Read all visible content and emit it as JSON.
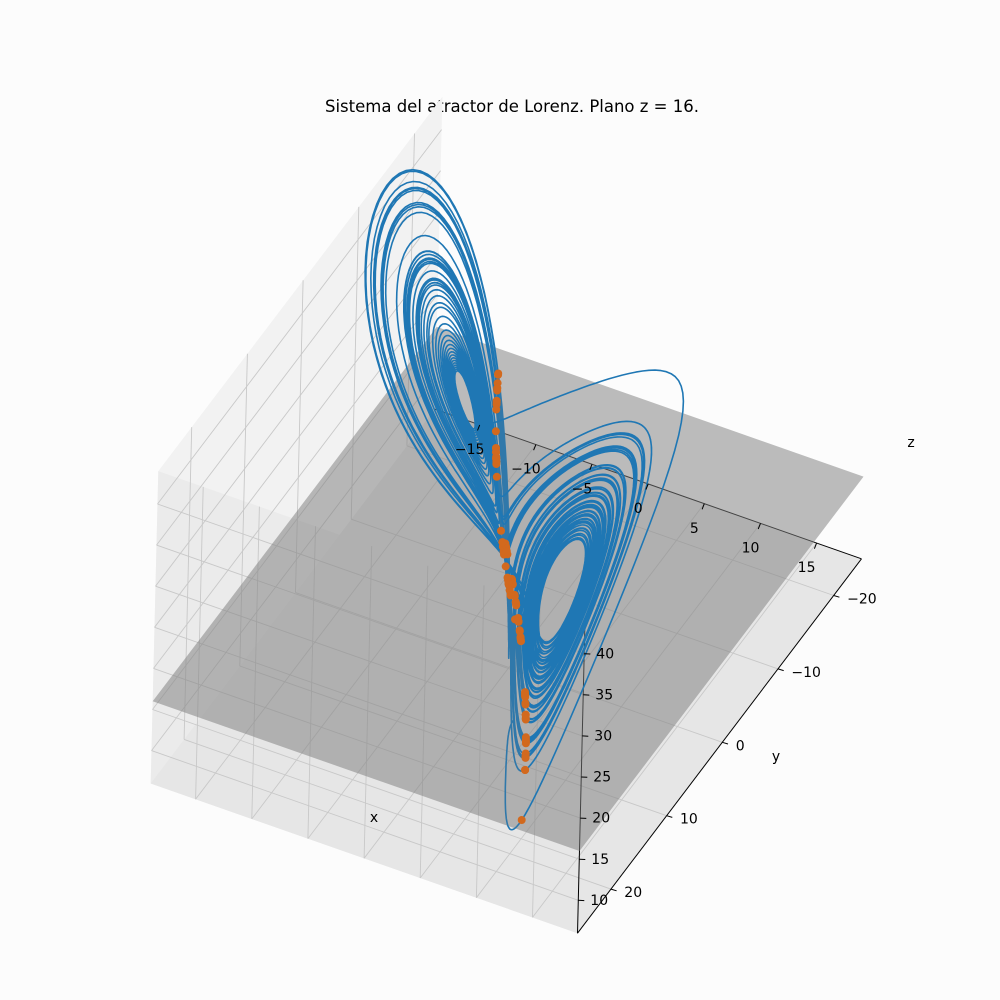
{
  "chart_data": {
    "type": "line",
    "projection": "3d",
    "title": "Sistema del atractor de Lorenz. Plano z = 16.",
    "xlabel": "x",
    "ylabel": "y",
    "zlabel": "z",
    "xlim": [
      -19,
      19
    ],
    "ylim": [
      -25,
      26
    ],
    "zlim": [
      6,
      44
    ],
    "x_ticks": [
      -15,
      -10,
      -5,
      0,
      5,
      10,
      15
    ],
    "y_ticks": [
      -20,
      -10,
      0,
      10,
      20
    ],
    "z_ticks": [
      10,
      15,
      20,
      25,
      30,
      35,
      40
    ],
    "grid": true,
    "plane": {
      "z": 16,
      "x_range": [
        -19,
        19
      ],
      "y_range": [
        -25,
        26
      ],
      "color": "#808080"
    },
    "series": [
      {
        "kind": "trajectory",
        "system": "lorenz",
        "color": "#1f77b4",
        "parameters": {
          "sigma": 10,
          "rho": 28,
          "beta": 2.6667
        },
        "initial_point": [
          1,
          1,
          1
        ]
      },
      {
        "kind": "scatter",
        "color": "#d2691e",
        "points_at_z": 16,
        "x_range": [
          -14.5,
          14.5
        ]
      }
    ],
    "legend": "none"
  }
}
